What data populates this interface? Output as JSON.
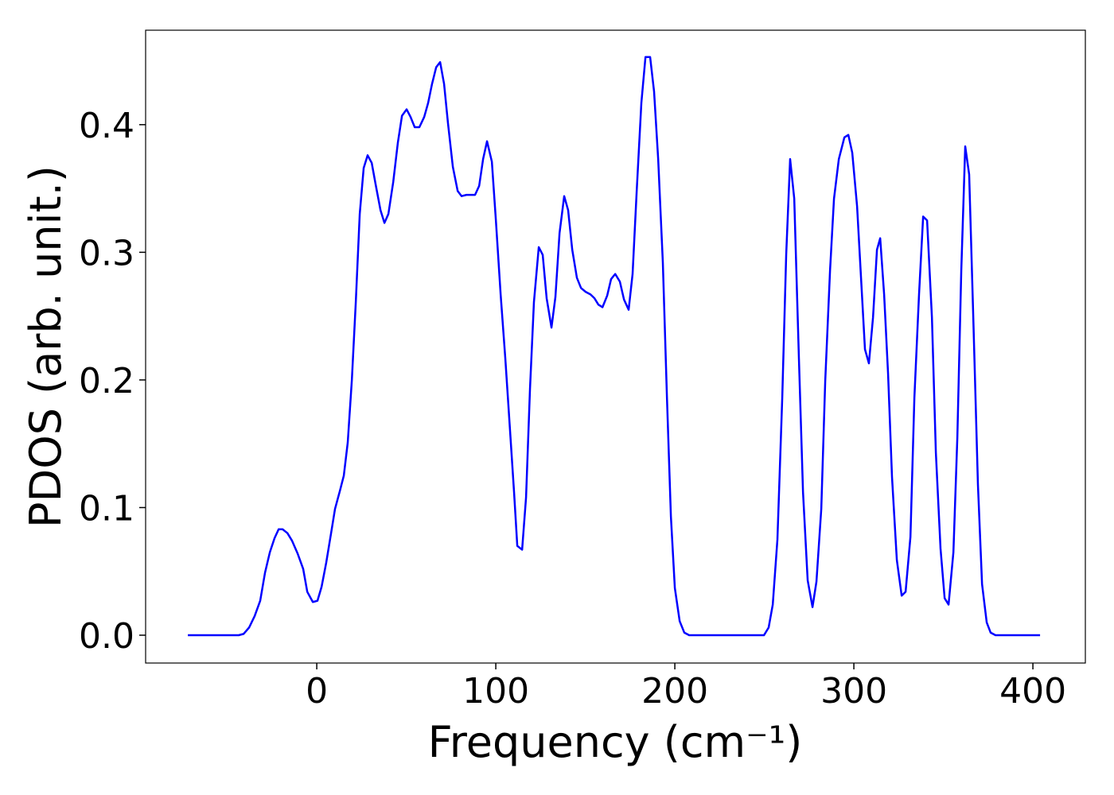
{
  "chart_data": {
    "type": "line",
    "xlabel": "Frequency (cm⁻¹)",
    "ylabel": "PDOS (arb. unit.)",
    "x": [
      -72.0,
      -43.6,
      -40.9,
      -37.8,
      -34.7,
      -31.6,
      -28.9,
      -26.2,
      -23.6,
      -21.3,
      -19.1,
      -16.4,
      -13.8,
      -10.7,
      -7.6,
      -5.3,
      -2.2,
      0.4,
      2.7,
      5.3,
      8.0,
      10.2,
      12.9,
      15.1,
      17.3,
      19.6,
      21.8,
      24.0,
      26.2,
      28.4,
      30.7,
      32.9,
      35.6,
      37.8,
      40.0,
      42.7,
      45.3,
      47.6,
      50.2,
      52.4,
      54.7,
      57.3,
      60.0,
      62.2,
      64.4,
      66.7,
      68.9,
      71.1,
      73.3,
      76.0,
      78.7,
      80.9,
      83.6,
      85.8,
      88.4,
      90.7,
      92.9,
      95.1,
      97.8,
      100.0,
      102.7,
      105.3,
      107.6,
      110.2,
      112.0,
      114.7,
      116.9,
      119.1,
      121.3,
      124.0,
      126.2,
      128.4,
      131.1,
      133.3,
      135.6,
      138.2,
      140.4,
      142.7,
      145.3,
      147.6,
      150.2,
      152.9,
      155.1,
      157.3,
      159.6,
      162.2,
      164.4,
      166.7,
      169.3,
      171.6,
      174.2,
      176.4,
      178.7,
      181.3,
      183.6,
      186.2,
      188.4,
      190.7,
      193.3,
      195.6,
      197.8,
      200.0,
      202.7,
      205.3,
      208.0,
      249.8,
      252.4,
      254.7,
      257.3,
      260.0,
      262.2,
      264.4,
      266.7,
      269.3,
      271.6,
      274.2,
      276.9,
      279.1,
      281.8,
      284.0,
      286.7,
      288.9,
      291.6,
      294.7,
      296.9,
      299.1,
      301.8,
      304.0,
      306.2,
      308.4,
      310.7,
      312.9,
      314.7,
      316.9,
      319.1,
      321.3,
      324.0,
      326.7,
      328.9,
      331.6,
      333.8,
      336.4,
      338.7,
      340.9,
      343.6,
      345.8,
      348.4,
      350.7,
      352.9,
      355.6,
      357.8,
      360.0,
      362.2,
      364.4,
      366.7,
      369.3,
      371.6,
      374.2,
      376.4,
      379.1,
      404.0
    ],
    "series": [
      {
        "color": "#0000ff",
        "values": [
          0,
          0,
          0.001,
          0.006,
          0.015,
          0.027,
          0.049,
          0.065,
          0.076,
          0.083,
          0.083,
          0.08,
          0.074,
          0.064,
          0.052,
          0.034,
          0.026,
          0.027,
          0.038,
          0.057,
          0.08,
          0.099,
          0.113,
          0.125,
          0.151,
          0.2,
          0.261,
          0.33,
          0.366,
          0.376,
          0.37,
          0.353,
          0.333,
          0.323,
          0.33,
          0.355,
          0.386,
          0.407,
          0.412,
          0.406,
          0.398,
          0.398,
          0.406,
          0.417,
          0.432,
          0.445,
          0.449,
          0.432,
          0.401,
          0.367,
          0.348,
          0.344,
          0.345,
          0.345,
          0.345,
          0.352,
          0.373,
          0.387,
          0.371,
          0.326,
          0.267,
          0.217,
          0.168,
          0.112,
          0.07,
          0.067,
          0.108,
          0.193,
          0.261,
          0.304,
          0.298,
          0.264,
          0.241,
          0.265,
          0.315,
          0.344,
          0.333,
          0.302,
          0.28,
          0.272,
          0.269,
          0.267,
          0.264,
          0.259,
          0.257,
          0.266,
          0.279,
          0.283,
          0.277,
          0.263,
          0.255,
          0.283,
          0.348,
          0.417,
          0.453,
          0.453,
          0.426,
          0.373,
          0.292,
          0.186,
          0.093,
          0.037,
          0.011,
          0.002,
          0,
          0,
          0.006,
          0.024,
          0.075,
          0.186,
          0.298,
          0.373,
          0.342,
          0.217,
          0.112,
          0.043,
          0.022,
          0.042,
          0.099,
          0.199,
          0.286,
          0.342,
          0.373,
          0.39,
          0.392,
          0.378,
          0.336,
          0.28,
          0.224,
          0.213,
          0.249,
          0.302,
          0.311,
          0.267,
          0.205,
          0.124,
          0.059,
          0.031,
          0.034,
          0.077,
          0.186,
          0.267,
          0.328,
          0.325,
          0.249,
          0.143,
          0.068,
          0.029,
          0.024,
          0.065,
          0.155,
          0.286,
          0.383,
          0.361,
          0.249,
          0.118,
          0.04,
          0.01,
          0.002,
          0,
          0
        ]
      }
    ],
    "xlim": [
      -95.6,
      429.3
    ],
    "ylim": [
      -0.0218,
      0.474
    ],
    "xticks": [
      0,
      100,
      200,
      300,
      400
    ],
    "yticks": [
      {
        "value": 0,
        "label": "0.0"
      },
      0.1,
      0.2,
      0.3,
      0.4
    ],
    "grid": false
  }
}
